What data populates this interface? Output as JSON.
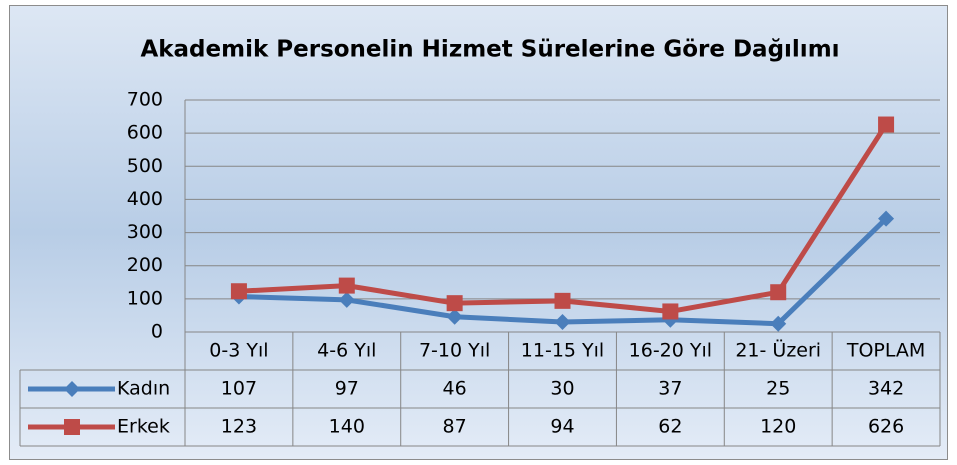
{
  "chart_data": {
    "type": "line",
    "title": "Akademik Personelin Hizmet Sürelerine Göre Dağılımı",
    "categories": [
      "0-3 Yıl",
      "4-6 Yıl",
      "7-10 Yıl",
      "11-15 Yıl",
      "16-20 Yıl",
      "21- Üzeri",
      "TOPLAM"
    ],
    "series": [
      {
        "name": "Kadın",
        "color": "#4a7ebb",
        "marker": "diamond",
        "values": [
          107,
          97,
          46,
          30,
          37,
          25,
          342
        ]
      },
      {
        "name": "Erkek",
        "color": "#be4b48",
        "marker": "square",
        "values": [
          123,
          140,
          87,
          94,
          62,
          120,
          626
        ]
      }
    ],
    "ylim": [
      0,
      700
    ],
    "yticks": [
      0,
      100,
      200,
      300,
      400,
      500,
      600,
      700
    ],
    "grid": true,
    "data_table": true
  }
}
